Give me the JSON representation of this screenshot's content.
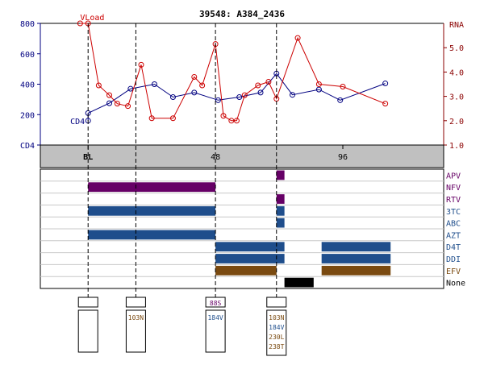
{
  "title": "39548: A384_2436",
  "colors": {
    "cd4": "#000080",
    "vload": "#cc0000",
    "text_cd4": "#000080",
    "text_rna": "#8b0000",
    "purple": "#660066",
    "blue": "#1f4e8c",
    "brown": "#7a4a10",
    "black": "#000000",
    "band": "#c0c0c0",
    "grid": "#c8c8c8"
  },
  "chart_data": {
    "type": "line",
    "title": "39548: A384_2436",
    "xlim": [
      -18,
      134
    ],
    "x_ticks": [
      {
        "x": 0,
        "label": "BL"
      },
      {
        "x": 48,
        "label": "48"
      },
      {
        "x": 96,
        "label": "96"
      }
    ],
    "left_axis": {
      "label": "CD4",
      "ylim": [
        0,
        800
      ],
      "ticks": [
        0,
        200,
        400,
        600,
        800
      ],
      "tick_labels": [
        "CD4",
        "200",
        "400",
        "600",
        "800"
      ]
    },
    "right_axis": {
      "label": "RNA",
      "ylim": [
        1.0,
        6.0
      ],
      "ticks": [
        1.0,
        2.0,
        3.0,
        4.0,
        5.0
      ],
      "tick_labels": [
        "1.0",
        "2.0",
        "3.0",
        "4.0",
        "5.0"
      ]
    },
    "series": [
      {
        "name": "CD4",
        "axis": "left",
        "points": [
          [
            0,
            160
          ],
          [
            0,
            210
          ],
          [
            8,
            275
          ],
          [
            16,
            370
          ],
          [
            25,
            400
          ],
          [
            32,
            315
          ],
          [
            40,
            345
          ],
          [
            49,
            295
          ],
          [
            57,
            315
          ],
          [
            65,
            345
          ],
          [
            71,
            470
          ],
          [
            77,
            330
          ],
          [
            87,
            365
          ],
          [
            95,
            295
          ],
          [
            112,
            405
          ]
        ]
      },
      {
        "name": "VLoad",
        "axis": "right",
        "points": [
          [
            -3,
            6.0
          ],
          [
            0,
            6.0
          ],
          [
            4,
            3.45
          ],
          [
            8,
            3.05
          ],
          [
            11,
            2.7
          ],
          [
            15,
            2.6
          ],
          [
            20,
            4.3
          ],
          [
            24,
            2.1
          ],
          [
            32,
            2.1
          ],
          [
            40,
            3.8
          ],
          [
            43,
            3.45
          ],
          [
            48,
            5.15
          ],
          [
            51,
            2.2
          ],
          [
            54,
            2.0
          ],
          [
            56,
            2.0
          ],
          [
            59,
            3.05
          ],
          [
            64,
            3.45
          ],
          [
            68,
            3.6
          ],
          [
            71,
            2.9
          ],
          [
            79,
            5.4
          ],
          [
            87,
            3.5
          ],
          [
            96,
            3.4
          ],
          [
            112,
            2.7
          ]
        ]
      }
    ],
    "event_lines": [
      0,
      18,
      48,
      71
    ],
    "drugs": [
      {
        "name": "APV",
        "color": "purple",
        "segments": [
          [
            71,
            74
          ]
        ]
      },
      {
        "name": "NFV",
        "color": "purple",
        "segments": [
          [
            0,
            48
          ]
        ]
      },
      {
        "name": "RTV",
        "color": "purple",
        "segments": [
          [
            71,
            74
          ]
        ]
      },
      {
        "name": "3TC",
        "color": "blue",
        "segments": [
          [
            0,
            48
          ],
          [
            71,
            74
          ]
        ]
      },
      {
        "name": "ABC",
        "color": "blue",
        "segments": [
          [
            71,
            74
          ]
        ]
      },
      {
        "name": "AZT",
        "color": "blue",
        "segments": [
          [
            0,
            48
          ]
        ]
      },
      {
        "name": "D4T",
        "color": "blue",
        "segments": [
          [
            48,
            74
          ],
          [
            88,
            114
          ]
        ]
      },
      {
        "name": "DDI",
        "color": "blue",
        "segments": [
          [
            48,
            74
          ],
          [
            88,
            114
          ]
        ]
      },
      {
        "name": "EFV",
        "color": "brown",
        "segments": [
          [
            48,
            71
          ],
          [
            88,
            114
          ]
        ]
      },
      {
        "name": "None",
        "color": "black",
        "segments": [
          [
            74,
            85
          ]
        ]
      }
    ],
    "genotypes": [
      {
        "x": 0,
        "top": "",
        "mutations": []
      },
      {
        "x": 18,
        "top": "",
        "mutations": [
          "103N"
        ]
      },
      {
        "x": 48,
        "top": "88S",
        "mutations": [
          "184V"
        ]
      },
      {
        "x": 71,
        "top": "",
        "mutations": [
          "103N",
          "184V",
          "230L",
          "238T"
        ]
      }
    ]
  }
}
